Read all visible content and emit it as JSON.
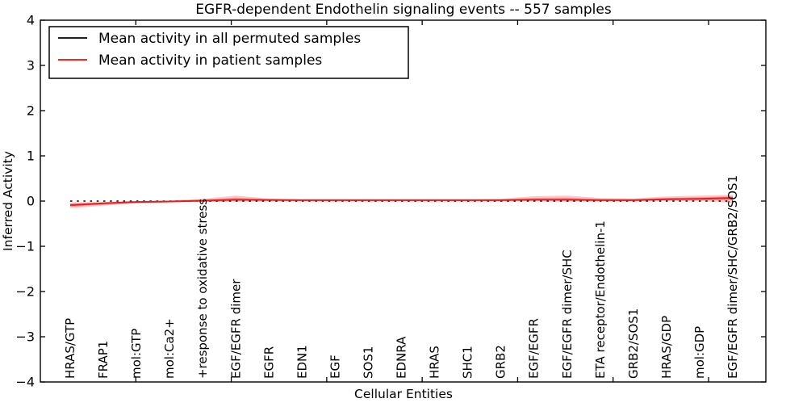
{
  "chart_data": {
    "type": "line",
    "title": "EGFR-dependent Endothelin signaling events -- 557 samples",
    "xlabel": "Cellular Entities",
    "ylabel": "Inferred Activity",
    "ylim": [
      -4,
      4
    ],
    "yticks": [
      4,
      3,
      2,
      1,
      0,
      -1,
      -2,
      -3,
      -4
    ],
    "grid": false,
    "legend_position": "upper left",
    "colors": {
      "permuted_line": "#000000",
      "patient_line": "#e81c1c",
      "legend_red": "#ff0000",
      "band_fill": "#ff0000",
      "frame": "#000000"
    },
    "legend": [
      {
        "label": "Mean activity in all permuted samples",
        "color": "#000000"
      },
      {
        "label": "Mean activity in patient samples",
        "color": "#ff0000"
      }
    ],
    "categories": [
      "HRAS/GTP",
      "FRAP1",
      "mol:GTP",
      "mol:Ca2+",
      "+response to oxidative stress",
      "EGF/EGFR dimer",
      "EGFR",
      "EDN1",
      "EGF",
      "SOS1",
      "EDNRA",
      "HRAS",
      "SHC1",
      "GRB2",
      "EGF/EGFR",
      "EGF/EGFR dimer/SHC",
      "ETA receptor/Endothelin-1",
      "GRB2/SOS1",
      "HRAS/GDP",
      "mol:GDP",
      "EGF/EGFR dimer/SHC/GRB2/SOS1"
    ],
    "series": [
      {
        "name": "Mean activity in all permuted samples",
        "style": "dotted",
        "values": [
          0,
          0,
          0,
          0,
          0,
          0,
          0,
          0,
          0,
          0,
          0,
          0,
          0,
          0,
          0,
          0,
          0,
          0,
          0,
          0,
          0
        ]
      },
      {
        "name": "Mean activity in patient samples",
        "style": "solid",
        "values": [
          -0.09,
          -0.05,
          -0.02,
          -0.01,
          0.01,
          0.03,
          0.025,
          0.02,
          0.02,
          0.02,
          0.02,
          0.02,
          0.02,
          0.02,
          0.03,
          0.03,
          0.02,
          0.02,
          0.04,
          0.05,
          0.07
        ],
        "band_upper": [
          -0.03,
          -0.02,
          0.0,
          0.01,
          0.05,
          0.12,
          0.055,
          0.04,
          0.04,
          0.04,
          0.04,
          0.04,
          0.04,
          0.05,
          0.11,
          0.12,
          0.07,
          0.06,
          0.1,
          0.12,
          0.14
        ],
        "band_lower": [
          -0.16,
          -0.1,
          -0.05,
          -0.03,
          -0.02,
          -0.01,
          -0.005,
          0.0,
          0.0,
          0.0,
          0.0,
          0.0,
          0.0,
          0.0,
          0.0,
          -0.01,
          0.0,
          0.0,
          0.0,
          0.0,
          -0.04
        ]
      }
    ]
  }
}
